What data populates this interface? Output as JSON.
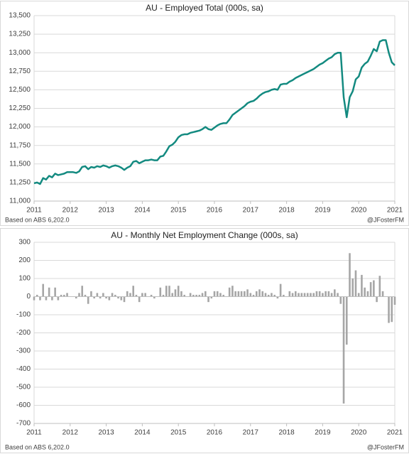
{
  "chart_data": [
    {
      "type": "line",
      "title": "AU - Employed Total (000s, sa)",
      "source_note": "Based on ABS 6,202.0",
      "credit": "@JFosterFM",
      "color": "#138a80",
      "grid": true,
      "categories": [
        "2011",
        null,
        null,
        null,
        null,
        null,
        null,
        null,
        null,
        null,
        null,
        null,
        "2012",
        null,
        null,
        null,
        null,
        null,
        null,
        null,
        null,
        null,
        null,
        null,
        "2013",
        null,
        null,
        null,
        null,
        null,
        null,
        null,
        null,
        null,
        null,
        null,
        "2014",
        null,
        null,
        null,
        null,
        null,
        null,
        null,
        null,
        null,
        null,
        null,
        "2015",
        null,
        null,
        null,
        null,
        null,
        null,
        null,
        null,
        null,
        null,
        null,
        "2016",
        null,
        null,
        null,
        null,
        null,
        null,
        null,
        null,
        null,
        null,
        null,
        "2017",
        null,
        null,
        null,
        null,
        null,
        null,
        null,
        null,
        null,
        null,
        null,
        "2018",
        null,
        null,
        null,
        null,
        null,
        null,
        null,
        null,
        null,
        null,
        null,
        "2019",
        null,
        null,
        null,
        null,
        null,
        null,
        null,
        null,
        null,
        null,
        null,
        "2020",
        null,
        null,
        null,
        null,
        null,
        null,
        null,
        null,
        null,
        null,
        null,
        "2021"
      ],
      "values": [
        11240,
        11250,
        11230,
        11310,
        11290,
        11340,
        11320,
        11370,
        11350,
        11360,
        11370,
        11390,
        11390,
        11390,
        11380,
        11400,
        11460,
        11470,
        11430,
        11460,
        11450,
        11470,
        11460,
        11480,
        11470,
        11450,
        11470,
        11480,
        11470,
        11450,
        11420,
        11450,
        11470,
        11530,
        11540,
        11510,
        11530,
        11550,
        11550,
        11560,
        11550,
        11550,
        11600,
        11610,
        11670,
        11740,
        11760,
        11800,
        11860,
        11890,
        11900,
        11900,
        11920,
        11930,
        11940,
        11950,
        11970,
        12000,
        11970,
        11960,
        11990,
        12020,
        12040,
        12050,
        12050,
        12100,
        12160,
        12190,
        12220,
        12250,
        12280,
        12320,
        12340,
        12350,
        12380,
        12420,
        12450,
        12470,
        12480,
        12500,
        12510,
        12500,
        12570,
        12580,
        12580,
        12610,
        12630,
        12660,
        12680,
        12700,
        12720,
        12740,
        12760,
        12780,
        12810,
        12840,
        12860,
        12890,
        12920,
        12940,
        12980,
        13000,
        13000,
        12400,
        12130,
        12400,
        12480,
        12640,
        12680,
        12800,
        12850,
        12880,
        12960,
        13050,
        13020,
        13150,
        13170,
        13170,
        13000,
        12870,
        12830
      ],
      "ylim": [
        11000,
        13500
      ],
      "yticks": [
        {
          "value": 11000,
          "label": "11,000"
        },
        {
          "value": 11250,
          "label": "11,250"
        },
        {
          "value": 11500,
          "label": "11,500"
        },
        {
          "value": 11750,
          "label": "11,750"
        },
        {
          "value": 12000,
          "label": "12,000"
        },
        {
          "value": 12250,
          "label": "12,250"
        },
        {
          "value": 12500,
          "label": "12,500"
        },
        {
          "value": 12750,
          "label": "12,750"
        },
        {
          "value": 13000,
          "label": "13,000"
        },
        {
          "value": 13250,
          "label": "13,250"
        },
        {
          "value": 13500,
          "label": "13,500"
        }
      ]
    },
    {
      "type": "bar",
      "title": "AU - Monthly Net Employment Change (000s, sa)",
      "source_note": "Based on ABS 6,202.0",
      "credit": "@JFosterFM",
      "color": "#a6a6a6",
      "grid": true,
      "categories": [
        "2011",
        null,
        null,
        null,
        null,
        null,
        null,
        null,
        null,
        null,
        null,
        null,
        "2012",
        null,
        null,
        null,
        null,
        null,
        null,
        null,
        null,
        null,
        null,
        null,
        "2013",
        null,
        null,
        null,
        null,
        null,
        null,
        null,
        null,
        null,
        null,
        null,
        "2014",
        null,
        null,
        null,
        null,
        null,
        null,
        null,
        null,
        null,
        null,
        null,
        "2015",
        null,
        null,
        null,
        null,
        null,
        null,
        null,
        null,
        null,
        null,
        null,
        "2016",
        null,
        null,
        null,
        null,
        null,
        null,
        null,
        null,
        null,
        null,
        null,
        "2017",
        null,
        null,
        null,
        null,
        null,
        null,
        null,
        null,
        null,
        null,
        null,
        "2018",
        null,
        null,
        null,
        null,
        null,
        null,
        null,
        null,
        null,
        null,
        null,
        "2019",
        null,
        null,
        null,
        null,
        null,
        null,
        null,
        null,
        null,
        null,
        null,
        "2020",
        null,
        null,
        null,
        null,
        null,
        null,
        null,
        null,
        null,
        null,
        null,
        "2021"
      ],
      "values": [
        -20,
        10,
        -20,
        70,
        -20,
        50,
        -20,
        50,
        -20,
        10,
        10,
        20,
        0,
        0,
        -10,
        20,
        60,
        10,
        -40,
        30,
        -10,
        20,
        -10,
        20,
        -10,
        -20,
        20,
        10,
        -10,
        -20,
        -30,
        30,
        20,
        60,
        10,
        -30,
        20,
        20,
        0,
        10,
        -10,
        0,
        50,
        10,
        60,
        60,
        20,
        40,
        60,
        30,
        10,
        0,
        20,
        10,
        10,
        10,
        20,
        30,
        -30,
        -10,
        30,
        30,
        20,
        10,
        0,
        50,
        60,
        30,
        30,
        30,
        30,
        40,
        20,
        10,
        30,
        40,
        30,
        20,
        10,
        20,
        10,
        -10,
        70,
        10,
        0,
        30,
        20,
        30,
        20,
        20,
        20,
        20,
        20,
        20,
        30,
        30,
        20,
        30,
        30,
        20,
        40,
        20,
        -40,
        -590,
        -265,
        240,
        100,
        145,
        20,
        120,
        50,
        30,
        80,
        90,
        -30,
        115,
        30,
        0,
        -145,
        -140,
        -45
      ],
      "ylim": [
        -700,
        300
      ],
      "yticks": [
        -700,
        -600,
        -500,
        -400,
        -300,
        -200,
        -100,
        0,
        100,
        200,
        300
      ]
    }
  ]
}
